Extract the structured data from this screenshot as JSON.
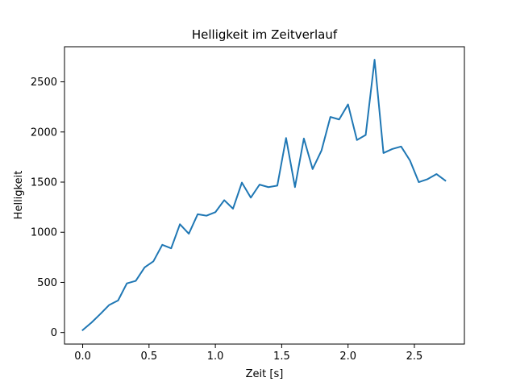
{
  "chart_data": {
    "type": "line",
    "title": "Helligkeit im Zeitverlauf",
    "xlabel": "Zeit [s]",
    "ylabel": "Helligkeit",
    "xlim": [
      -0.137,
      2.877
    ],
    "ylim": [
      -115,
      2850
    ],
    "x_ticks": [
      0.0,
      0.5,
      1.0,
      1.5,
      2.0,
      2.5
    ],
    "x_tick_labels": [
      "0.0",
      "0.5",
      "1.0",
      "1.5",
      "2.0",
      "2.5"
    ],
    "y_ticks": [
      0,
      500,
      1000,
      1500,
      2000,
      2500
    ],
    "y_tick_labels": [
      "0",
      "500",
      "1000",
      "1500",
      "2000",
      "2500"
    ],
    "grid": false,
    "line_color": "#1f77b4",
    "series": [
      {
        "x": [
          0.0,
          0.067,
          0.133,
          0.2,
          0.267,
          0.333,
          0.4,
          0.467,
          0.533,
          0.6,
          0.667,
          0.733,
          0.8,
          0.867,
          0.933,
          1.0,
          1.067,
          1.133,
          1.2,
          1.267,
          1.333,
          1.4,
          1.467,
          1.533,
          1.6,
          1.667,
          1.733,
          1.8,
          1.867,
          1.933,
          2.0,
          2.067,
          2.133,
          2.2,
          2.267,
          2.333,
          2.4,
          2.467,
          2.533,
          2.6,
          2.667,
          2.733
        ],
        "values": [
          25,
          100,
          185,
          275,
          320,
          490,
          515,
          650,
          710,
          875,
          840,
          1080,
          985,
          1180,
          1165,
          1200,
          1320,
          1235,
          1495,
          1345,
          1475,
          1450,
          1465,
          1940,
          1450,
          1935,
          1630,
          1815,
          2150,
          2125,
          2275,
          1920,
          1970,
          2720,
          1790,
          1830,
          1855,
          1715,
          1500,
          1530,
          1580,
          1515
        ]
      }
    ]
  }
}
